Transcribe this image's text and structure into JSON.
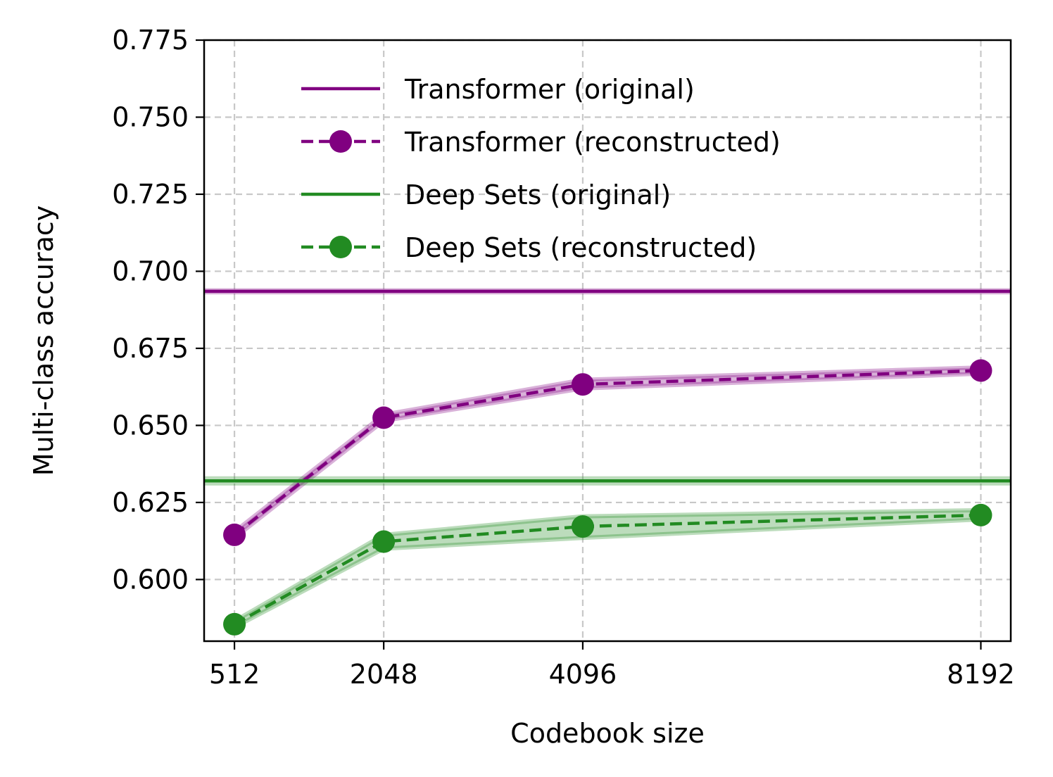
{
  "chart_data": {
    "type": "line",
    "title": "",
    "xlabel": "Codebook size",
    "ylabel": "Multi-class accuracy",
    "x": [
      512,
      2048,
      4096,
      8192
    ],
    "x_tick_labels": [
      "512",
      "2048",
      "4096",
      "8192"
    ],
    "y_ticks": [
      0.6,
      0.625,
      0.65,
      0.675,
      0.7,
      0.725,
      0.75,
      0.775
    ],
    "y_tick_labels": [
      "0.600",
      "0.625",
      "0.650",
      "0.675",
      "0.700",
      "0.725",
      "0.750",
      "0.775"
    ],
    "xlim": [
      200,
      8500
    ],
    "ylim": [
      0.58,
      0.775
    ],
    "grid": true,
    "legend_position": "top-center",
    "series": [
      {
        "name": "Transformer (original)",
        "style": "solid",
        "color": "#800080",
        "constant": 0.6935,
        "band": [
          0.6925,
          0.6945
        ]
      },
      {
        "name": "Transformer (reconstructed)",
        "style": "dashed-marker",
        "color": "#800080",
        "values": [
          0.6145,
          0.6525,
          0.6633,
          0.6678
        ],
        "band_low": [
          0.6135,
          0.6515,
          0.662,
          0.6668
        ],
        "band_high": [
          0.6155,
          0.6535,
          0.6648,
          0.6688
        ]
      },
      {
        "name": "Deep Sets (original)",
        "style": "solid",
        "color": "#228B22",
        "constant": 0.632,
        "band": [
          0.6305,
          0.6335
        ]
      },
      {
        "name": "Deep Sets (reconstructed)",
        "style": "dashed-marker",
        "color": "#228B22",
        "values": [
          0.5855,
          0.6123,
          0.6172,
          0.6209
        ],
        "band_low": [
          0.5845,
          0.61,
          0.6135,
          0.6195
        ],
        "band_high": [
          0.5865,
          0.6145,
          0.6205,
          0.6225
        ]
      }
    ]
  }
}
